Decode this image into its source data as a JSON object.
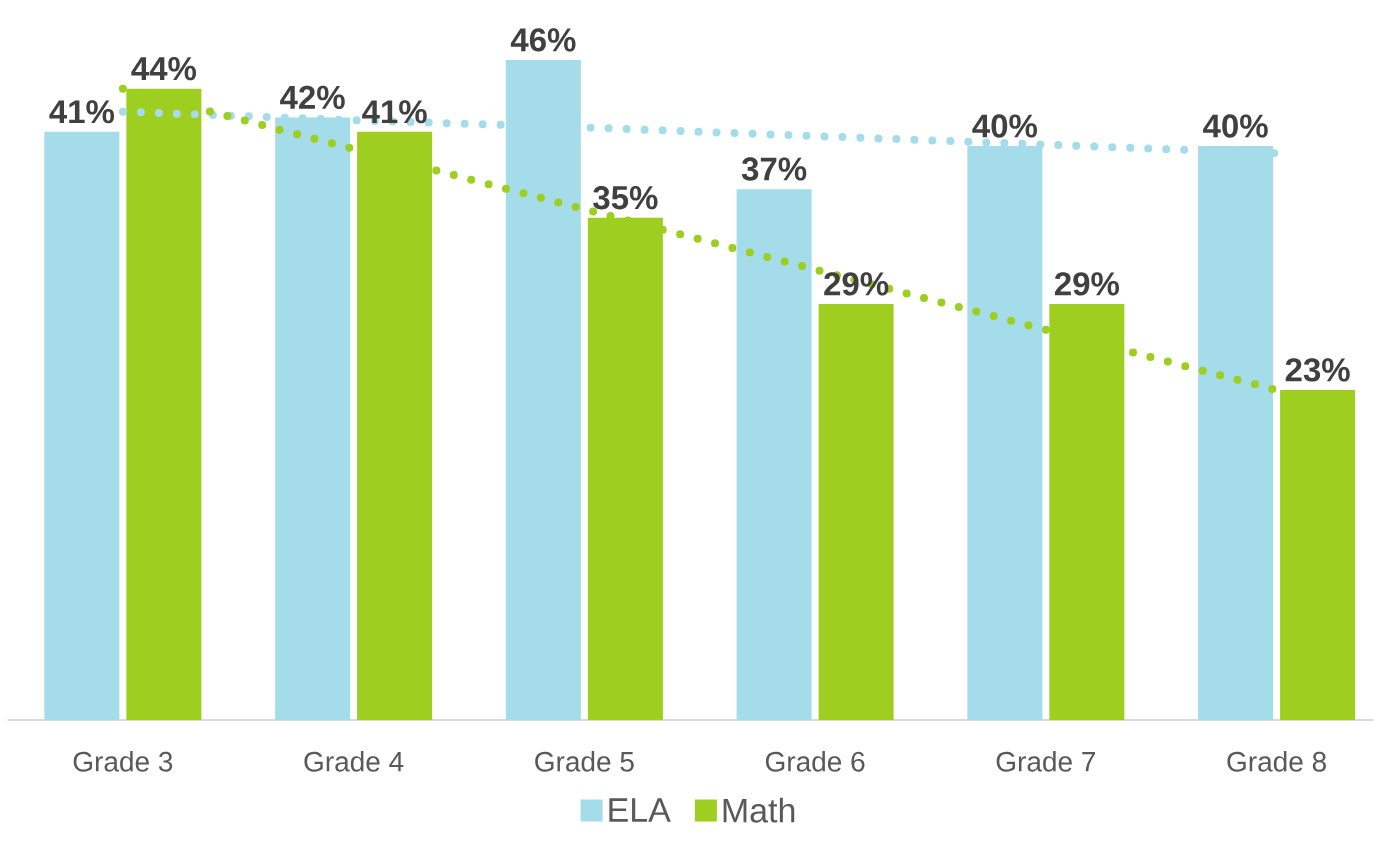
{
  "chart_data": {
    "type": "bar",
    "categories": [
      "Grade 3",
      "Grade 4",
      "Grade 5",
      "Grade 6",
      "Grade 7",
      "Grade 8"
    ],
    "series": [
      {
        "name": "ELA",
        "color": "#a4dcea",
        "values": [
          41,
          42,
          46,
          37,
          40,
          40
        ],
        "value_labels": [
          "41%",
          "42%",
          "46%",
          "37%",
          "40%",
          "40%"
        ]
      },
      {
        "name": "Math",
        "color": "#9dce20",
        "values": [
          44,
          41,
          35,
          29,
          29,
          23
        ],
        "value_labels": [
          "44%",
          "41%",
          "35%",
          "29%",
          "29%",
          "23%"
        ]
      },
      {
        "type": "line",
        "color": "#a4dcea",
        "line_style": "dotted",
        "values": [
          42.4,
          41.8,
          41.3,
          40.7,
          40.1,
          39.5
        ]
      },
      {
        "type": "line",
        "color": "#9dce20",
        "line_style": "dotted",
        "values": [
          44,
          39.8,
          35.6,
          31.4,
          27.2,
          23
        ]
      }
    ],
    "ylim": [
      0,
      46
    ],
    "tick_labels": "x",
    "grid": false,
    "legend": "bottom"
  }
}
